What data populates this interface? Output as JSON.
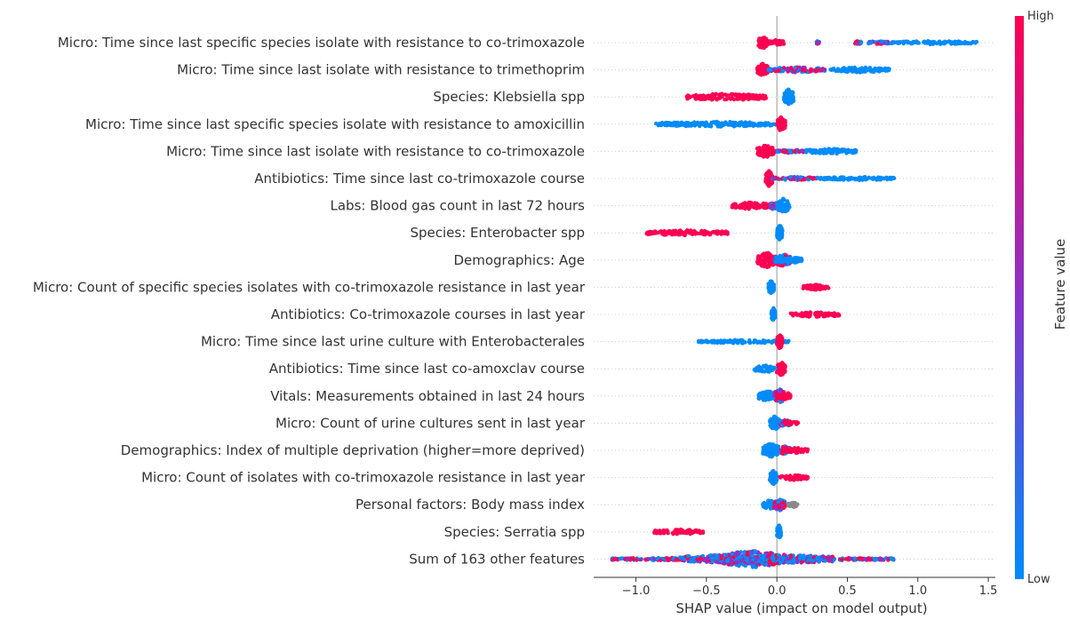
{
  "chart_data": {
    "type": "scatter",
    "subtype": "shap-beeswarm-summary",
    "title": "",
    "xlabel": "SHAP value (impact on model output)",
    "xlim": [
      -1.3,
      1.55
    ],
    "xticks": [
      -1.0,
      -0.5,
      0.0,
      0.5,
      1.0,
      1.5
    ],
    "xtick_labels": [
      "−1.0",
      "−0.5",
      "0.0",
      "0.5",
      "1.0",
      "1.5"
    ],
    "zero_line": 0.0,
    "grid": "horizontal-dotted",
    "colorbar": {
      "label": "Feature value",
      "high_label": "High",
      "low_label": "Low",
      "high_color": "#ff0052",
      "mid_color": "#8a33c8",
      "low_color": "#008bfb",
      "placement": "right"
    },
    "features": [
      {
        "name": "Micro: Time since last specific species isolate with resistance to co-trimoxazole",
        "clusters": [
          {
            "v": "hi",
            "min": -0.13,
            "max": -0.07,
            "w": 8
          },
          {
            "v": "hi",
            "min": -0.07,
            "max": 0.05,
            "w": 3
          },
          {
            "v": "mix",
            "min": 0.28,
            "max": 0.3,
            "w": 2
          },
          {
            "v": "mix",
            "min": 0.55,
            "max": 0.6,
            "w": 2
          },
          {
            "v": "mix",
            "min": 0.65,
            "max": 0.8,
            "w": 2
          },
          {
            "v": "lo",
            "min": 0.8,
            "max": 1.42,
            "w": 2
          }
        ]
      },
      {
        "name": "Micro: Time since last isolate with resistance to trimethoprim",
        "clusters": [
          {
            "v": "hi",
            "min": -0.14,
            "max": -0.06,
            "w": 7
          },
          {
            "v": "mix",
            "min": -0.06,
            "max": 0.35,
            "w": 3
          },
          {
            "v": "lo",
            "min": 0.38,
            "max": 0.8,
            "w": 3
          }
        ]
      },
      {
        "name": "Species: Klebsiella spp",
        "clusters": [
          {
            "v": "hi",
            "min": -0.64,
            "max": -0.07,
            "w": 4
          },
          {
            "v": "lo",
            "min": 0.05,
            "max": 0.12,
            "w": 9
          }
        ]
      },
      {
        "name": "Micro: Time since last specific species isolate with resistance to amoxicillin",
        "clusters": [
          {
            "v": "lo",
            "min": -0.86,
            "max": 0.0,
            "w": 3
          },
          {
            "v": "hi",
            "min": 0.0,
            "max": 0.06,
            "w": 8
          }
        ]
      },
      {
        "name": "Micro: Time since last isolate with resistance to co-trimoxazole",
        "clusters": [
          {
            "v": "hi",
            "min": -0.14,
            "max": -0.02,
            "w": 7
          },
          {
            "v": "mix",
            "min": -0.02,
            "max": 0.2,
            "w": 2
          },
          {
            "v": "lo",
            "min": 0.2,
            "max": 0.57,
            "w": 3
          }
        ]
      },
      {
        "name": "Antibiotics: Time since last co-trimoxazole course",
        "clusters": [
          {
            "v": "hi",
            "min": -0.08,
            "max": -0.03,
            "w": 9
          },
          {
            "v": "mix",
            "min": -0.03,
            "max": 0.3,
            "w": 2
          },
          {
            "v": "lo",
            "min": 0.3,
            "max": 0.84,
            "w": 2
          }
        ]
      },
      {
        "name": "Labs: Blood gas count in last 72 hours",
        "clusters": [
          {
            "v": "hi",
            "min": -0.32,
            "max": -0.05,
            "w": 4
          },
          {
            "v": "mix",
            "min": -0.05,
            "max": 0.0,
            "w": 5
          },
          {
            "v": "lo",
            "min": 0.0,
            "max": 0.09,
            "w": 8
          }
        ]
      },
      {
        "name": "Species: Enterobacter spp",
        "clusters": [
          {
            "v": "hi",
            "min": -0.93,
            "max": -0.35,
            "w": 3
          },
          {
            "v": "lo",
            "min": 0.0,
            "max": 0.04,
            "w": 9
          }
        ]
      },
      {
        "name": "Demographics: Age",
        "clusters": [
          {
            "v": "hi",
            "min": -0.14,
            "max": 0.0,
            "w": 9
          },
          {
            "v": "mix",
            "min": -0.02,
            "max": 0.1,
            "w": 7
          },
          {
            "v": "lo",
            "min": 0.0,
            "max": 0.18,
            "w": 4
          }
        ]
      },
      {
        "name": "Micro: Count of specific species isolates with co-trimoxazole resistance in last year",
        "clusters": [
          {
            "v": "lo",
            "min": -0.06,
            "max": -0.02,
            "w": 8
          },
          {
            "v": "hi",
            "min": 0.18,
            "max": 0.37,
            "w": 3
          }
        ]
      },
      {
        "name": "Antibiotics: Co-trimoxazole courses in last year",
        "clusters": [
          {
            "v": "lo",
            "min": -0.04,
            "max": -0.01,
            "w": 8
          },
          {
            "v": "hi",
            "min": 0.09,
            "max": 0.45,
            "w": 3
          }
        ]
      },
      {
        "name": "Micro: Time since last urine culture with Enterobacterales",
        "clusters": [
          {
            "v": "lo",
            "min": -0.56,
            "max": 0.09,
            "w": 2
          },
          {
            "v": "hi",
            "min": 0.0,
            "max": 0.04,
            "w": 9
          }
        ]
      },
      {
        "name": "Antibiotics: Time since last co-amoxclav course",
        "clusters": [
          {
            "v": "lo",
            "min": -0.16,
            "max": 0.0,
            "w": 4
          },
          {
            "v": "hi",
            "min": 0.0,
            "max": 0.06,
            "w": 8
          }
        ]
      },
      {
        "name": "Vitals: Measurements obtained in last 24 hours",
        "clusters": [
          {
            "v": "lo",
            "min": -0.13,
            "max": 0.0,
            "w": 6
          },
          {
            "v": "mix",
            "min": -0.02,
            "max": 0.06,
            "w": 8
          },
          {
            "v": "hi",
            "min": 0.0,
            "max": 0.1,
            "w": 5
          }
        ]
      },
      {
        "name": "Micro: Count of urine cultures sent in last year",
        "clusters": [
          {
            "v": "lo",
            "min": -0.05,
            "max": 0.02,
            "w": 8
          },
          {
            "v": "mix",
            "min": 0.02,
            "max": 0.1,
            "w": 4
          },
          {
            "v": "hi",
            "min": 0.05,
            "max": 0.15,
            "w": 2
          }
        ]
      },
      {
        "name": "Demographics: Index of multiple deprivation (higher=more deprived)",
        "clusters": [
          {
            "v": "lo",
            "min": -0.1,
            "max": 0.02,
            "w": 8
          },
          {
            "v": "mix",
            "min": 0.0,
            "max": 0.1,
            "w": 5
          },
          {
            "v": "hi",
            "min": 0.05,
            "max": 0.22,
            "w": 3
          }
        ]
      },
      {
        "name": "Micro: Count of  isolates with co-trimoxazole resistance in last year",
        "clusters": [
          {
            "v": "lo",
            "min": -0.05,
            "max": 0.0,
            "w": 8
          },
          {
            "v": "hi",
            "min": 0.02,
            "max": 0.22,
            "w": 3
          }
        ]
      },
      {
        "name": "Personal factors: Body mass index",
        "clusters": [
          {
            "v": "lo",
            "min": -0.1,
            "max": 0.0,
            "w": 5
          },
          {
            "v": "mix",
            "min": -0.02,
            "max": 0.06,
            "w": 7
          },
          {
            "v": "gray",
            "min": 0.08,
            "max": 0.15,
            "w": 3
          }
        ]
      },
      {
        "name": "Species: Serratia spp",
        "clusters": [
          {
            "v": "hi",
            "min": -0.87,
            "max": -0.52,
            "w": 3
          },
          {
            "v": "lo",
            "min": 0.0,
            "max": 0.03,
            "w": 8
          }
        ]
      },
      {
        "name": "Sum of 163 other features",
        "clusters": [
          {
            "v": "mixwide",
            "min": -1.17,
            "max": 0.84,
            "w": 2
          },
          {
            "v": "mixwide",
            "min": -0.7,
            "max": 0.4,
            "w": 6
          },
          {
            "v": "mixwide",
            "min": -0.4,
            "max": 0.05,
            "w": 10
          }
        ]
      }
    ]
  }
}
